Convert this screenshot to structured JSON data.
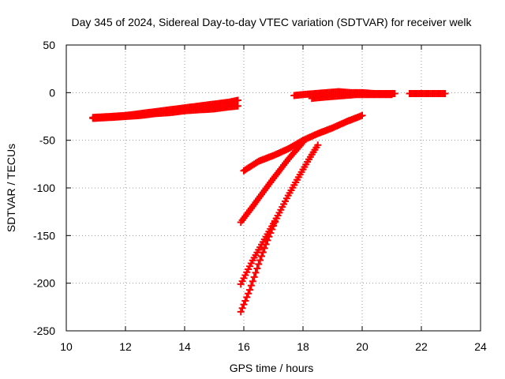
{
  "chart_data": {
    "type": "scatter",
    "title": "Day 345 of 2024, Sidereal Day-to-day VTEC variation (SDTVAR) for receiver welk",
    "xlabel": "GPS time / hours",
    "ylabel": "SDTVAR / TECUs",
    "xlim": [
      10,
      24
    ],
    "ylim": [
      -250,
      50
    ],
    "x_ticks": [
      10,
      12,
      14,
      16,
      18,
      20,
      22,
      24
    ],
    "y_ticks": [
      -250,
      -200,
      -150,
      -100,
      -50,
      0,
      50
    ],
    "x_tick_labels": [
      "10",
      "12",
      "14",
      "16",
      "18",
      "20",
      "22",
      "24"
    ],
    "y_tick_labels": [
      "-250",
      "-200",
      "-150",
      "-100",
      "-50",
      "0",
      "50"
    ],
    "grid": true,
    "marker": "plus",
    "color": "#ff0000",
    "series": [
      {
        "x": [
          10.9,
          11.5,
          12.0,
          12.5,
          13.0,
          13.5,
          14.0,
          14.5,
          15.0,
          15.5,
          15.8
        ],
        "y": [
          -26,
          -25,
          -24,
          -22,
          -20,
          -18,
          -16,
          -14,
          -12,
          -10,
          -8
        ]
      },
      {
        "x": [
          10.9,
          11.5,
          12.0,
          12.5,
          13.0,
          13.5,
          14.0,
          14.5,
          15.0,
          15.5,
          15.8
        ],
        "y": [
          -27,
          -26,
          -25,
          -24,
          -22,
          -21,
          -19,
          -18,
          -17,
          -15,
          -14
        ]
      },
      {
        "x": [
          17.7,
          18.0,
          18.4,
          18.8,
          19.2,
          19.6,
          20.0,
          20.4,
          20.8,
          21.1
        ],
        "y": [
          -3,
          -2,
          -1,
          0,
          1,
          0,
          0,
          -1,
          -1,
          -1
        ]
      },
      {
        "x": [
          18.3,
          18.6,
          19.0,
          19.4,
          19.8,
          20.2,
          20.6,
          21.0
        ],
        "y": [
          -6,
          -5,
          -4,
          -3,
          -2,
          -2,
          -2,
          -2
        ]
      },
      {
        "x": [
          21.6,
          22.0,
          22.4,
          22.8
        ],
        "y": [
          -1,
          -1,
          -1,
          -1
        ]
      },
      {
        "x": [
          16.0,
          16.5,
          17.0,
          17.5,
          18.0,
          18.5,
          19.0,
          19.5,
          20.0
        ],
        "y": [
          -82,
          -72,
          -66,
          -59,
          -50,
          -43,
          -37,
          -30,
          -24
        ]
      },
      {
        "x": [
          15.9,
          16.5,
          17.0,
          17.5,
          18.0
        ],
        "y": [
          -136,
          -111,
          -90,
          -70,
          -52
        ]
      },
      {
        "x": [
          15.9,
          16.3,
          16.7,
          17.1,
          17.5,
          17.9,
          18.2,
          18.5
        ],
        "y": [
          -201,
          -176,
          -154,
          -132,
          -108,
          -86,
          -70,
          -55
        ]
      },
      {
        "x": [
          15.9,
          16.2,
          16.5,
          16.8,
          17.1
        ],
        "y": [
          -230,
          -207,
          -180,
          -155,
          -132
        ]
      }
    ]
  }
}
